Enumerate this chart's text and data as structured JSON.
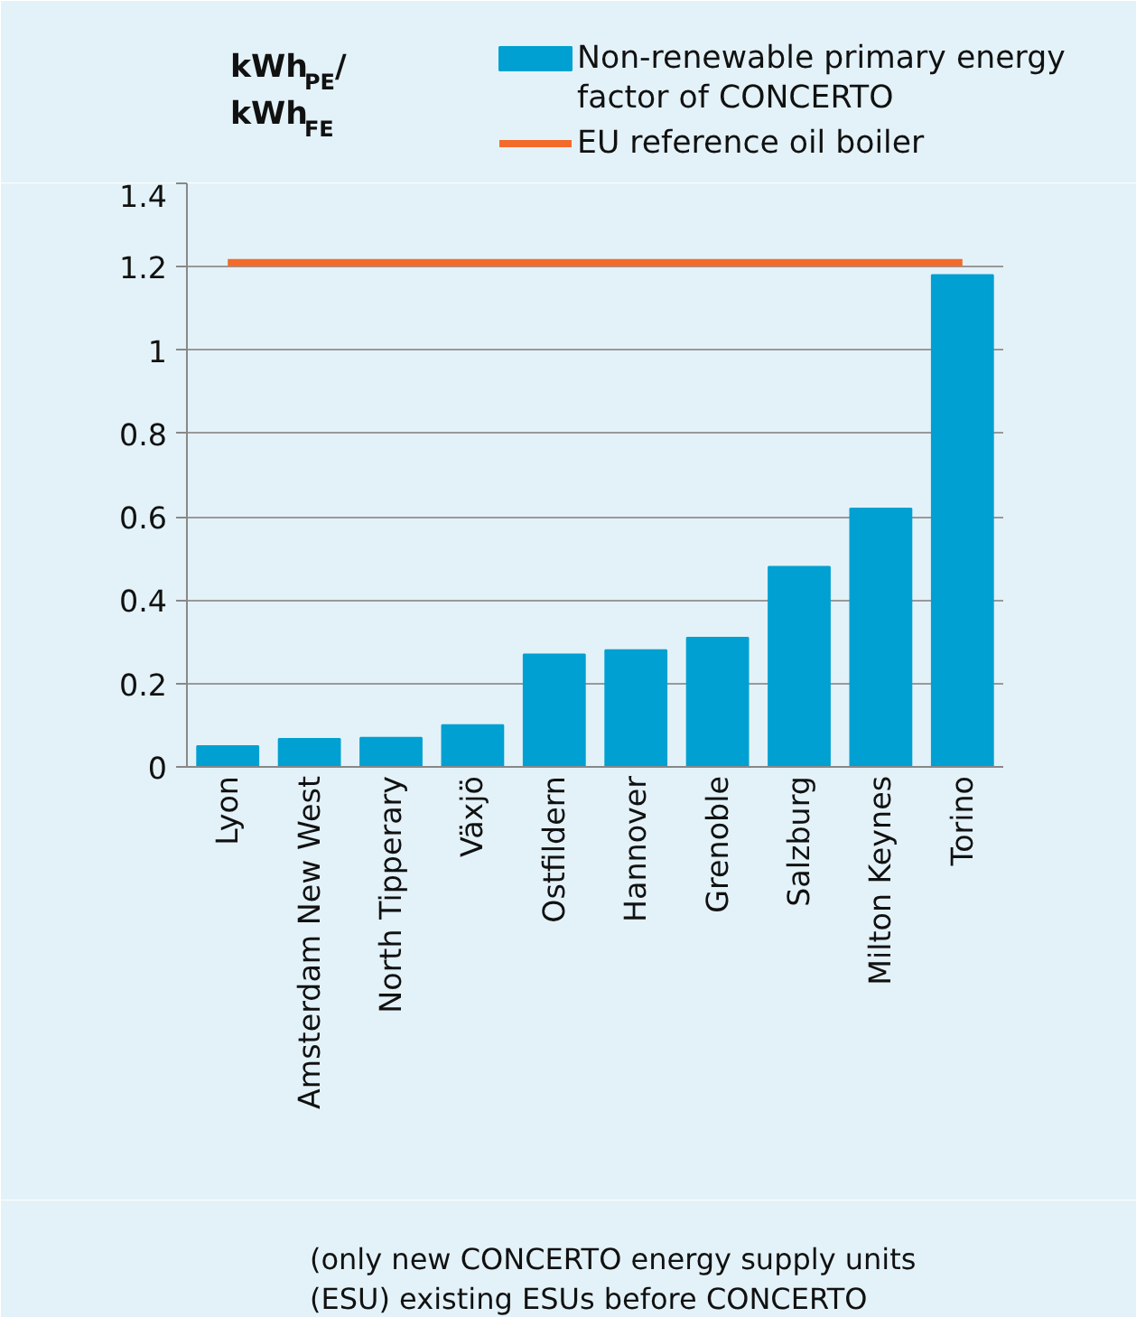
{
  "chart_data": {
    "type": "bar",
    "ylabel": "kWh$_{PE}$/kWh$_{FE}$",
    "categories": [
      "Lyon",
      "Amsterdam New West",
      "North Tipperary",
      "Växjö",
      "Ostfildern",
      "Hannover",
      "Grenoble",
      "Salzburg",
      "Milton Keynes",
      "Torino"
    ],
    "series": [
      {
        "name": "Non-renewable primary energy\nfactor of CONCERTO",
        "color": "#00a0d2",
        "values": [
          0.05,
          0.067,
          0.07,
          0.1,
          0.27,
          0.28,
          0.31,
          0.48,
          0.62,
          1.18
        ]
      },
      {
        "name": "EU reference oil boiler",
        "type": "line",
        "color": "#f26b2b",
        "values": [
          1.21,
          1.21,
          1.21,
          1.21,
          1.21,
          1.21,
          1.21,
          1.21,
          1.21,
          1.21
        ]
      }
    ],
    "ylim": [
      0,
      1.4
    ],
    "yticks": [
      0,
      0.2,
      0.4,
      0.6,
      0.8,
      1,
      1.2,
      1.4
    ],
    "grid": "y",
    "legend": "top",
    "annotations": [
      "(only new CONCERTO energy supply units\n(ESU) existing ESUs before CONCERTO"
    ]
  }
}
